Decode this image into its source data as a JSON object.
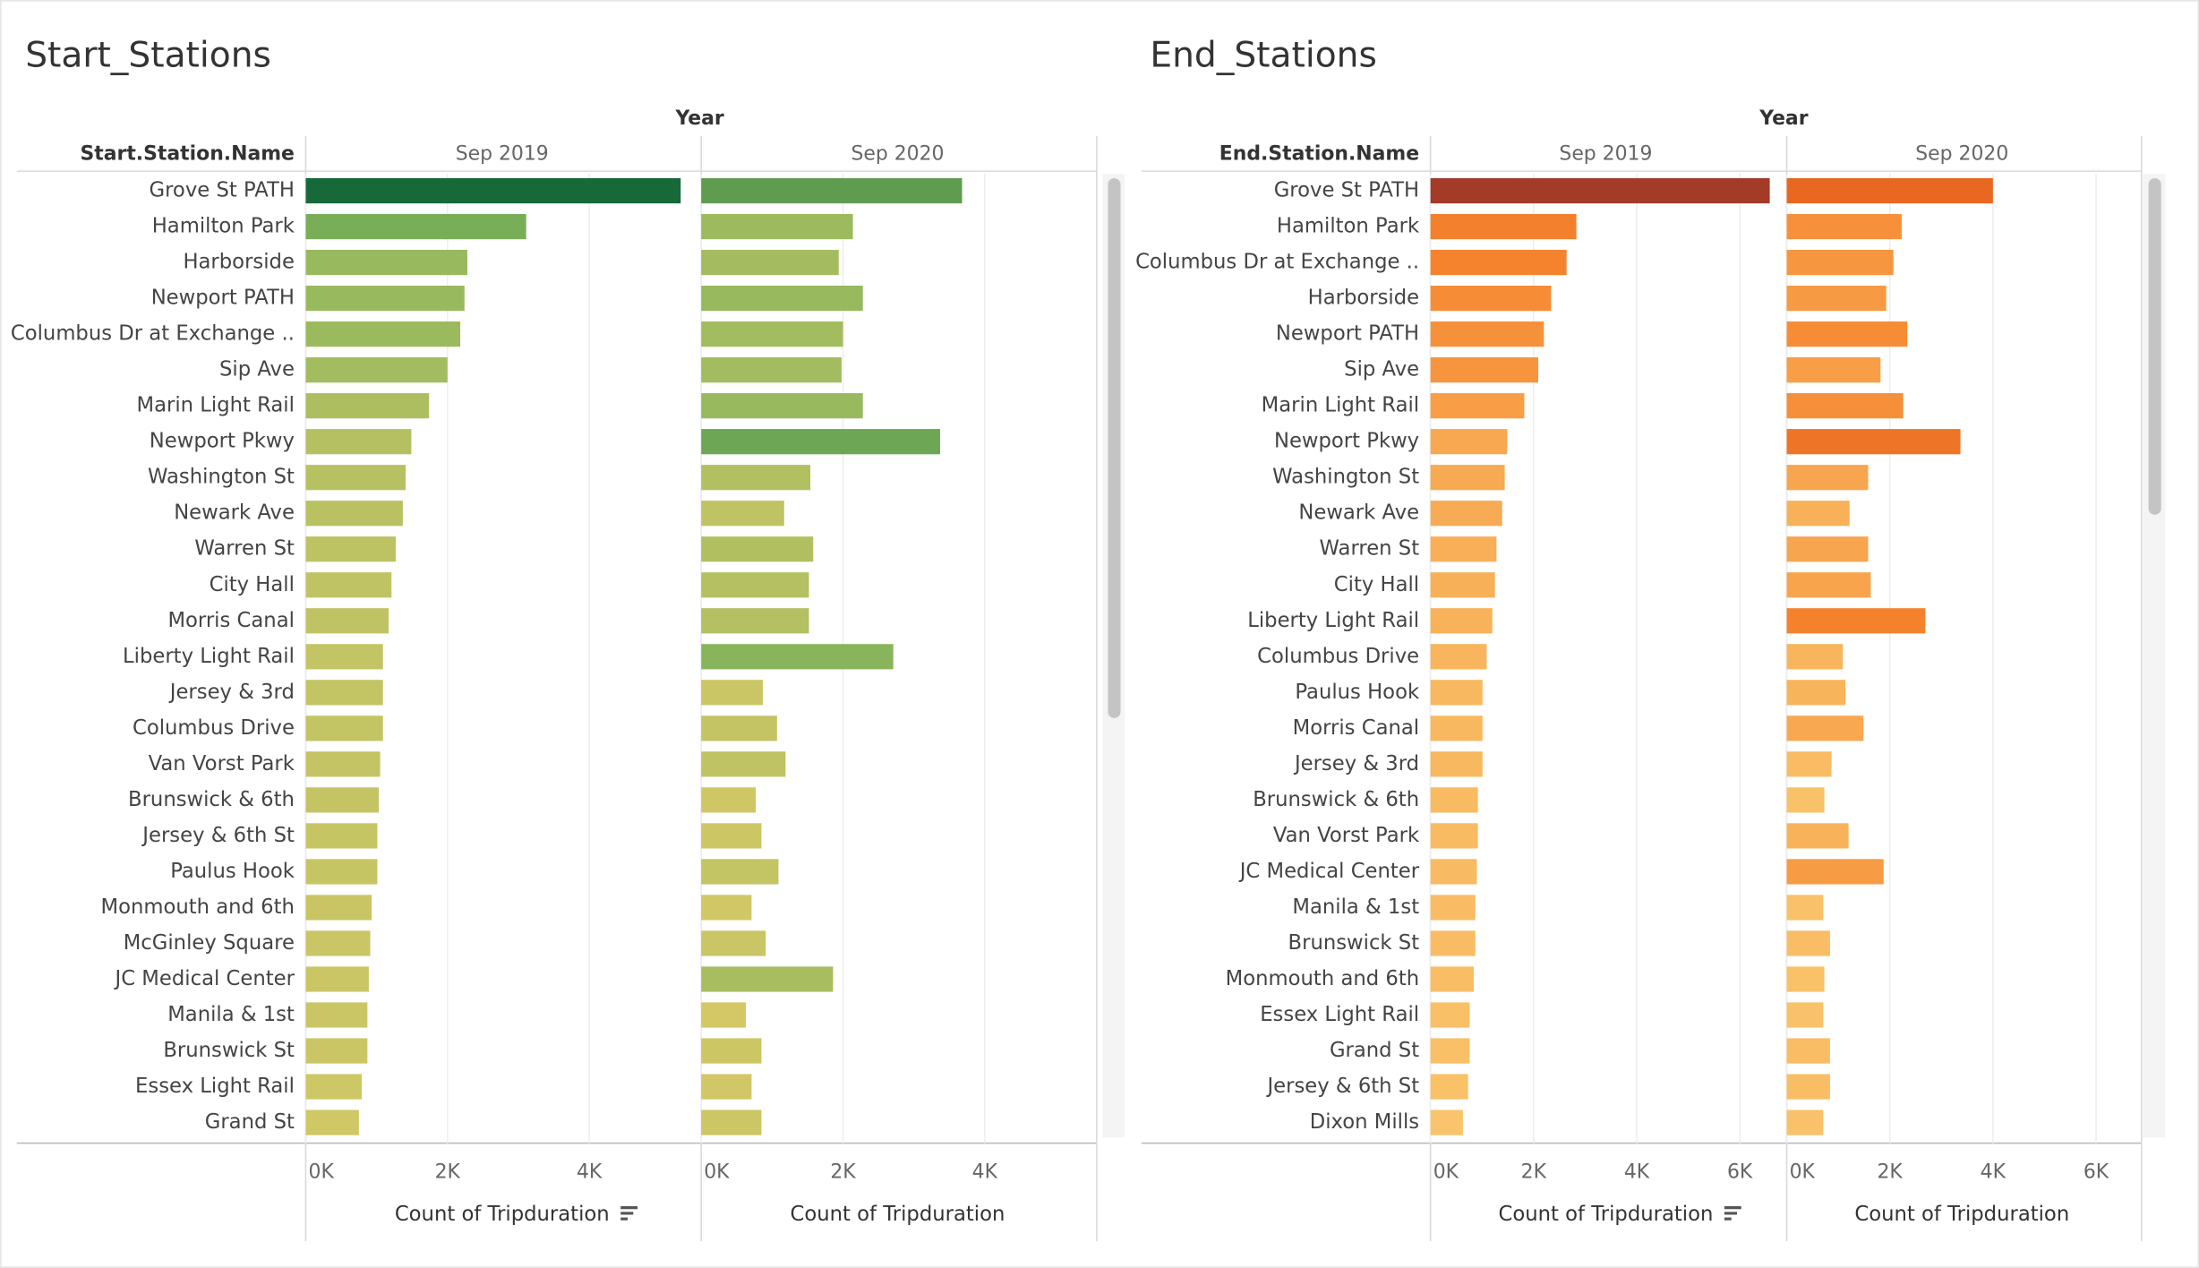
{
  "chart_data": [
    {
      "type": "bar",
      "orientation": "horizontal",
      "title": "Start_Stations",
      "header_label": "Year",
      "category_label": "Start.Station.Name",
      "x_label": "Count of Tripduration",
      "categories": [
        "Grove St PATH",
        "Hamilton Park",
        "Harborside",
        "Newport PATH",
        "Columbus Dr at Exchange ..",
        "Sip Ave",
        "Marin Light Rail",
        "Newport Pkwy",
        "Washington St",
        "Newark Ave",
        "Warren St",
        "City Hall",
        "Morris Canal",
        "Liberty Light Rail",
        "Jersey & 3rd",
        "Columbus Drive",
        "Van Vorst Park",
        "Brunswick & 6th",
        "Jersey & 6th St",
        "Paulus Hook",
        "Monmouth and 6th",
        "McGinley Square",
        "JC Medical Center",
        "Manila & 1st",
        "Brunswick St",
        "Essex Light Rail",
        "Grand St"
      ],
      "series": [
        {
          "name": "Sep 2019",
          "values": [
            5290,
            3110,
            2280,
            2240,
            2180,
            2000,
            1740,
            1490,
            1410,
            1370,
            1270,
            1210,
            1170,
            1090,
            1090,
            1090,
            1050,
            1030,
            1010,
            1010,
            930,
            910,
            890,
            870,
            870,
            790,
            750
          ]
        },
        {
          "name": "Sep 2020",
          "values": [
            3680,
            2140,
            1940,
            2280,
            2000,
            1980,
            2280,
            3370,
            1540,
            1170,
            1580,
            1520,
            1520,
            2710,
            870,
            1070,
            1190,
            770,
            850,
            1090,
            710,
            910,
            1860,
            630,
            850,
            710,
            850
          ]
        }
      ],
      "xlim": [
        0,
        5540
      ],
      "xticks": [
        {
          "value": 0,
          "label": "0K"
        },
        {
          "value": 2000,
          "label": "2K"
        },
        {
          "value": 4000,
          "label": "4K"
        }
      ],
      "grid": true,
      "color_scale": [
        "#d4c866",
        "#7fb35a",
        "#17693a"
      ]
    },
    {
      "type": "bar",
      "orientation": "horizontal",
      "title": "End_Stations",
      "header_label": "Year",
      "category_label": "End.Station.Name",
      "x_label": "Count of Tripduration",
      "categories": [
        "Grove St PATH",
        "Hamilton Park",
        "Columbus Dr at Exchange ..",
        "Harborside",
        "Newport PATH",
        "Sip Ave",
        "Marin Light Rail",
        "Newport Pkwy",
        "Washington St",
        "Newark Ave",
        "Warren St",
        "City Hall",
        "Liberty Light Rail",
        "Columbus Drive",
        "Paulus Hook",
        "Morris Canal",
        "Jersey & 3rd",
        "Brunswick & 6th",
        "Van Vorst Park",
        "JC Medical Center",
        "Manila & 1st",
        "Brunswick St",
        "Monmouth and 6th",
        "Essex Light Rail",
        "Grand St",
        "Jersey & 6th St",
        "Dixon Mills"
      ],
      "series": [
        {
          "name": "Sep 2019",
          "values": [
            6580,
            2830,
            2640,
            2340,
            2200,
            2090,
            1820,
            1490,
            1440,
            1390,
            1280,
            1250,
            1200,
            1090,
            1010,
            1010,
            1010,
            920,
            920,
            900,
            870,
            870,
            840,
            760,
            760,
            730,
            630
          ]
        },
        {
          "name": "Sep 2020",
          "values": [
            4000,
            2230,
            2070,
            1930,
            2340,
            1820,
            2260,
            3370,
            1580,
            1220,
            1580,
            1630,
            2690,
            1090,
            1140,
            1490,
            870,
            730,
            1200,
            1880,
            710,
            840,
            730,
            710,
            840,
            840,
            710
          ]
        }
      ],
      "xlim": [
        0,
        6800
      ],
      "xticks": [
        {
          "value": 0,
          "label": "0K"
        },
        {
          "value": 2000,
          "label": "2K"
        },
        {
          "value": 4000,
          "label": "4K"
        },
        {
          "value": 6000,
          "label": "6K"
        }
      ],
      "grid": true,
      "color_scale": [
        "#f9c46b",
        "#f5842e",
        "#e35c1c",
        "#a33b28"
      ]
    }
  ]
}
